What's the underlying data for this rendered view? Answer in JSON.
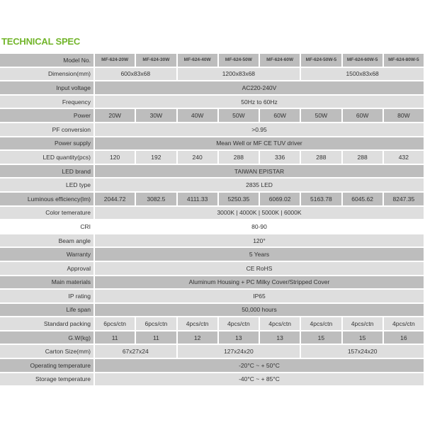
{
  "title": "TECHNICAL SPEC",
  "colors": {
    "title": "#72b52a",
    "row_dark": "#bdbdbd",
    "row_light": "#dedede"
  },
  "models": [
    "MF-624-20W",
    "MF-624-30W",
    "MF-624-40W",
    "MF-624-50W",
    "MF-624-60W",
    "MF-624-50W-5",
    "MF-624-60W-5",
    "MF-624-80W-5"
  ],
  "rows": [
    {
      "label": "Model No.",
      "style": "dark",
      "model": true,
      "cells": [
        {
          "v": "MF-624-20W",
          "span": 1
        },
        {
          "v": "MF-624-30W",
          "span": 1
        },
        {
          "v": "MF-624-40W",
          "span": 1
        },
        {
          "v": "MF-624-50W",
          "span": 1
        },
        {
          "v": "MF-624-60W",
          "span": 1
        },
        {
          "v": "MF-624-50W-5",
          "span": 1
        },
        {
          "v": "MF-624-60W-5",
          "span": 1
        },
        {
          "v": "MF-624-80W-5",
          "span": 1
        }
      ]
    },
    {
      "label": "Dimension(mm)",
      "style": "light",
      "cells": [
        {
          "v": "600x83x68",
          "span": 2
        },
        {
          "v": "1200x83x68",
          "span": 3
        },
        {
          "v": "1500x83x68",
          "span": 3
        }
      ]
    },
    {
      "label": "Input voltage",
      "style": "dark",
      "cells": [
        {
          "v": "AC220-240V",
          "span": 8
        }
      ]
    },
    {
      "label": "Frequency",
      "style": "light",
      "cells": [
        {
          "v": "50Hz to 60Hz",
          "span": 8
        }
      ]
    },
    {
      "label": "Power",
      "style": "dark",
      "cells": [
        {
          "v": "20W",
          "span": 1
        },
        {
          "v": "30W",
          "span": 1
        },
        {
          "v": "40W",
          "span": 1
        },
        {
          "v": "50W",
          "span": 1
        },
        {
          "v": "60W",
          "span": 1
        },
        {
          "v": "50W",
          "span": 1
        },
        {
          "v": "60W",
          "span": 1
        },
        {
          "v": "80W",
          "span": 1
        }
      ]
    },
    {
      "label": "PF conversion",
      "style": "light",
      "cells": [
        {
          "v": ">0.95",
          "span": 8
        }
      ]
    },
    {
      "label": "Power supply",
      "style": "dark",
      "cells": [
        {
          "v": "Mean Well or MF CE TUV driver",
          "span": 8
        }
      ]
    },
    {
      "label": "LED quantity(pcs)",
      "style": "light",
      "cells": [
        {
          "v": "120",
          "span": 1
        },
        {
          "v": "192",
          "span": 1
        },
        {
          "v": "240",
          "span": 1
        },
        {
          "v": "288",
          "span": 1
        },
        {
          "v": "336",
          "span": 1
        },
        {
          "v": "288",
          "span": 1
        },
        {
          "v": "288",
          "span": 1
        },
        {
          "v": "432",
          "span": 1
        }
      ]
    },
    {
      "label": "LED brand",
      "style": "dark",
      "cells": [
        {
          "v": "TAIWAN EPISTAR",
          "span": 8
        }
      ]
    },
    {
      "label": "LED type",
      "style": "light",
      "cells": [
        {
          "v": "2835 LED",
          "span": 8
        }
      ]
    },
    {
      "label": "Luminous efficiency(lm)",
      "style": "dark",
      "cells": [
        {
          "v": "2044.72",
          "span": 1
        },
        {
          "v": "3082.5",
          "span": 1
        },
        {
          "v": "4111.33",
          "span": 1
        },
        {
          "v": "5250.35",
          "span": 1
        },
        {
          "v": "6069.02",
          "span": 1
        },
        {
          "v": "5163.78",
          "span": 1
        },
        {
          "v": "6045.62",
          "span": 1
        },
        {
          "v": "8247.35",
          "span": 1
        }
      ]
    },
    {
      "label": "Color temerature",
      "style": "light",
      "cells": [
        {
          "v": "3000K | 4000K | 5000K | 6000K",
          "span": 8
        }
      ]
    },
    {
      "label": "CRI",
      "style": "white",
      "cells": [
        {
          "v": "80-90",
          "span": 8
        }
      ]
    },
    {
      "label": "Beam angle",
      "style": "light",
      "cells": [
        {
          "v": "120°",
          "span": 8
        }
      ]
    },
    {
      "label": "Warranty",
      "style": "dark",
      "cells": [
        {
          "v": "5 Years",
          "span": 8
        }
      ]
    },
    {
      "label": "Approval",
      "style": "light",
      "cells": [
        {
          "v": "CE RoHS",
          "span": 8
        }
      ]
    },
    {
      "label": "Main materials",
      "style": "dark",
      "cells": [
        {
          "v": "Aluminum Housing + PC Milky Cover/Stripped Cover",
          "span": 8
        }
      ]
    },
    {
      "label": "IP rating",
      "style": "light",
      "cells": [
        {
          "v": "IP65",
          "span": 8
        }
      ]
    },
    {
      "label": "Life span",
      "style": "dark",
      "cells": [
        {
          "v": "50,000 hours",
          "span": 8
        }
      ]
    },
    {
      "label": "Standard packing",
      "style": "light",
      "cells": [
        {
          "v": "6pcs/ctn",
          "span": 1
        },
        {
          "v": "6pcs/ctn",
          "span": 1
        },
        {
          "v": "4pcs/ctn",
          "span": 1
        },
        {
          "v": "4pcs/ctn",
          "span": 1
        },
        {
          "v": "4pcs/ctn",
          "span": 1
        },
        {
          "v": "4pcs/ctn",
          "span": 1
        },
        {
          "v": "4pcs/ctn",
          "span": 1
        },
        {
          "v": "4pcs/ctn",
          "span": 1
        }
      ]
    },
    {
      "label": "G.W(kg)",
      "style": "dark",
      "cells": [
        {
          "v": "11",
          "span": 1
        },
        {
          "v": "11",
          "span": 1
        },
        {
          "v": "12",
          "span": 1
        },
        {
          "v": "13",
          "span": 1
        },
        {
          "v": "13",
          "span": 1
        },
        {
          "v": "15",
          "span": 1
        },
        {
          "v": "15",
          "span": 1
        },
        {
          "v": "16",
          "span": 1
        }
      ]
    },
    {
      "label": "Carton Size(mm)",
      "style": "light",
      "cells": [
        {
          "v": "67x27x24",
          "span": 2
        },
        {
          "v": "127x24x20",
          "span": 3
        },
        {
          "v": "157x24x20",
          "span": 3
        }
      ]
    },
    {
      "label": "Operating temperature",
      "style": "dark",
      "cells": [
        {
          "v": "-20°C ~ + 50°C",
          "span": 8
        }
      ]
    },
    {
      "label": "Storage temperature",
      "style": "light",
      "cells": [
        {
          "v": "-40°C ~ + 85°C",
          "span": 8
        }
      ]
    }
  ]
}
